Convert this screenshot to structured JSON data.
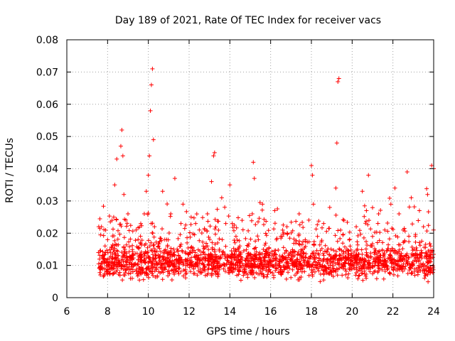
{
  "chart_data": {
    "type": "scatter",
    "title": "Day 189 of 2021, Rate Of TEC Index for receiver vacs",
    "xlabel": "GPS time / hours",
    "ylabel": "ROTI / TECUs",
    "xlim": [
      6,
      24
    ],
    "ylim": [
      0,
      0.08
    ],
    "xticks": [
      "6",
      "8",
      "10",
      "12",
      "14",
      "16",
      "18",
      "20",
      "22",
      "24"
    ],
    "yticks": [
      "0",
      "0.01",
      "0.02",
      "0.03",
      "0.04",
      "0.05",
      "0.06",
      "0.07",
      "0.08"
    ],
    "grid": true,
    "marker": "+",
    "color": "#ff0000",
    "series": [
      {
        "name": "vacs",
        "x": [
          7.55,
          7.7,
          7.85,
          8.0,
          8.2,
          8.3,
          8.35,
          8.45,
          8.6,
          8.65,
          8.7,
          8.75,
          8.8,
          8.85,
          9.0,
          9.2,
          9.4,
          9.6,
          9.8,
          9.9,
          10.0,
          10.05,
          10.1,
          10.15,
          10.2,
          10.25,
          10.3,
          10.5,
          10.7,
          10.9,
          11.1,
          11.3,
          11.5,
          11.6,
          11.7,
          11.9,
          12.1,
          12.3,
          12.5,
          12.7,
          12.9,
          13.1,
          13.2,
          13.25,
          13.4,
          13.6,
          13.8,
          13.9,
          14.0,
          14.3,
          14.6,
          14.9,
          15.1,
          15.15,
          15.2,
          15.4,
          15.6,
          15.9,
          16.2,
          16.5,
          16.8,
          17.1,
          17.4,
          17.7,
          18.0,
          18.05,
          18.1,
          18.3,
          18.6,
          18.9,
          19.2,
          19.25,
          19.3,
          19.35,
          19.6,
          19.9,
          20.2,
          20.5,
          20.7,
          20.8,
          21.0,
          21.3,
          21.6,
          21.9,
          22.1,
          22.3,
          22.5,
          22.7,
          22.9,
          23.1,
          23.3,
          23.5,
          23.7,
          23.9,
          24.0
        ],
        "y": [
          0.014,
          0.022,
          0.012,
          0.018,
          0.009,
          0.025,
          0.035,
          0.043,
          0.011,
          0.047,
          0.052,
          0.044,
          0.032,
          0.015,
          0.026,
          0.012,
          0.021,
          0.017,
          0.026,
          0.033,
          0.038,
          0.044,
          0.058,
          0.066,
          0.071,
          0.049,
          0.022,
          0.016,
          0.033,
          0.018,
          0.026,
          0.037,
          0.012,
          0.023,
          0.029,
          0.017,
          0.025,
          0.014,
          0.021,
          0.016,
          0.026,
          0.036,
          0.044,
          0.045,
          0.017,
          0.031,
          0.023,
          0.013,
          0.035,
          0.019,
          0.024,
          0.016,
          0.026,
          0.042,
          0.037,
          0.018,
          0.029,
          0.014,
          0.027,
          0.019,
          0.022,
          0.013,
          0.026,
          0.018,
          0.041,
          0.038,
          0.029,
          0.019,
          0.023,
          0.028,
          0.034,
          0.048,
          0.067,
          0.068,
          0.024,
          0.016,
          0.022,
          0.033,
          0.027,
          0.038,
          0.019,
          0.026,
          0.021,
          0.029,
          0.034,
          0.026,
          0.021,
          0.039,
          0.031,
          0.019,
          0.027,
          0.022,
          0.032,
          0.041,
          0.04
        ]
      }
    ]
  }
}
